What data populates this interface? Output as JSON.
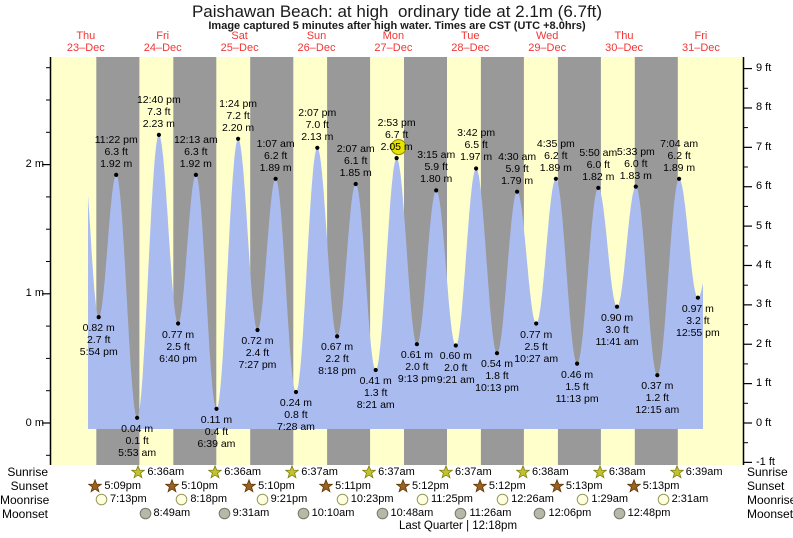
{
  "title": "Paishawan Beach: at high  ordinary tide at 2.1m (6.7ft)",
  "subtitle": "Image captured 5 minutes after high water. Times are CST (UTC +8.0hrs)",
  "colors": {
    "band_day": "#ffffcc",
    "band_night": "#999999",
    "tide_area": "#aabbf0",
    "day_label_red": "#f23535",
    "current_highlight": "#e8e400",
    "current_highlight_edge": "#8a8a00",
    "sunrise_star": "#c2c22e",
    "sunrise_star_edge": "#7d7d10",
    "sunset_star": "#9a6120",
    "sunset_star_edge": "#5c3508",
    "moonrise_circle": "#ffffdd",
    "moonrise_circle_edge": "#99995c",
    "moonset_circle": "#b8b8a8",
    "moonset_circle_edge": "#77776a",
    "axis": "#000000"
  },
  "chart_data": {
    "type": "area",
    "title": "Paishawan Beach: at high  ordinary tide at 2.1m (6.7ft)",
    "xlabel": "",
    "ylabel_left": "m",
    "ylabel_right": "ft",
    "ylim_left_m": [
      -0.3,
      2.84
    ],
    "grid": false,
    "days": [
      {
        "name": "Thu",
        "date": "23–Dec"
      },
      {
        "name": "Fri",
        "date": "24–Dec"
      },
      {
        "name": "Sat",
        "date": "25–Dec"
      },
      {
        "name": "Sun",
        "date": "26–Dec"
      },
      {
        "name": "Mon",
        "date": "27–Dec"
      },
      {
        "name": "Tue",
        "date": "28–Dec"
      },
      {
        "name": "Wed",
        "date": "29–Dec"
      },
      {
        "name": "Thu",
        "date": "30–Dec"
      },
      {
        "name": "Fri",
        "date": "31–Dec"
      }
    ],
    "left_ticks": [
      {
        "m": 2,
        "label": "2 m"
      },
      {
        "m": 1,
        "label": "1 m"
      },
      {
        "m": 0,
        "label": "0 m"
      }
    ],
    "right_ticks": [
      {
        "ft": 9,
        "label": "9 ft"
      },
      {
        "ft": 8,
        "label": "8 ft"
      },
      {
        "ft": 7,
        "label": "7 ft"
      },
      {
        "ft": 6,
        "label": "6 ft"
      },
      {
        "ft": 5,
        "label": "5 ft"
      },
      {
        "ft": 4,
        "label": "4 ft"
      },
      {
        "ft": 3,
        "label": "3 ft"
      },
      {
        "ft": 2,
        "label": "2 ft"
      },
      {
        "ft": 1,
        "label": "1 ft"
      },
      {
        "ft": 0,
        "label": "0 ft"
      },
      {
        "ft": -1,
        "label": "-1 ft"
      }
    ],
    "tides": [
      {
        "day": 0,
        "date": "23-Dec",
        "type": "low",
        "time": "5:54 pm",
        "ft": "2.7",
        "m": "0.82"
      },
      {
        "day": 0,
        "date": "23-Dec",
        "type": "high",
        "time": "11:22 pm",
        "ft": "6.3",
        "m": "1.92"
      },
      {
        "day": 1,
        "date": "24-Dec",
        "type": "low",
        "time": "5:53 am",
        "ft": "0.1",
        "m": "0.04"
      },
      {
        "day": 1,
        "date": "24-Dec",
        "type": "high",
        "time": "12:40 pm",
        "ft": "7.3",
        "m": "2.23"
      },
      {
        "day": 1,
        "date": "24-Dec",
        "type": "low",
        "time": "6:40 pm",
        "ft": "2.5",
        "m": "0.77"
      },
      {
        "day": 2,
        "date": "25-Dec",
        "type": "high",
        "time": "12:13 am",
        "ft": "6.3",
        "m": "1.92"
      },
      {
        "day": 2,
        "date": "25-Dec",
        "type": "low",
        "time": "6:39 am",
        "ft": "0.4",
        "m": "0.11"
      },
      {
        "day": 2,
        "date": "25-Dec",
        "type": "high",
        "time": "1:24 pm",
        "ft": "7.2",
        "m": "2.20"
      },
      {
        "day": 2,
        "date": "25-Dec",
        "type": "low",
        "time": "7:27 pm",
        "ft": "2.4",
        "m": "0.72"
      },
      {
        "day": 3,
        "date": "26-Dec",
        "type": "high",
        "time": "1:07 am",
        "ft": "6.2",
        "m": "1.89"
      },
      {
        "day": 3,
        "date": "26-Dec",
        "type": "low",
        "time": "7:28 am",
        "ft": "0.8",
        "m": "0.24"
      },
      {
        "day": 3,
        "date": "26-Dec",
        "type": "high",
        "time": "2:07 pm",
        "ft": "7.0",
        "m": "2.13"
      },
      {
        "day": 3,
        "date": "26-Dec",
        "type": "low",
        "time": "8:18 pm",
        "ft": "2.2",
        "m": "0.67"
      },
      {
        "day": 4,
        "date": "27-Dec",
        "type": "high",
        "time": "2:07 am",
        "ft": "6.1",
        "m": "1.85"
      },
      {
        "day": 4,
        "date": "27-Dec",
        "type": "low",
        "time": "8:21 am",
        "ft": "1.3",
        "m": "0.41"
      },
      {
        "day": 4,
        "date": "27-Dec",
        "type": "high",
        "time": "2:53 pm",
        "ft": "6.7",
        "m": "2.05",
        "current": true
      },
      {
        "day": 4,
        "date": "27-Dec",
        "type": "low",
        "time": "9:13 pm",
        "ft": "2.0",
        "m": "0.61"
      },
      {
        "day": 5,
        "date": "28-Dec",
        "type": "high",
        "time": "3:15 am",
        "ft": "5.9",
        "m": "1.80"
      },
      {
        "day": 5,
        "date": "28-Dec",
        "type": "low",
        "time": "9:21 am",
        "ft": "2.0",
        "m": "0.60"
      },
      {
        "day": 5,
        "date": "28-Dec",
        "type": "high",
        "time": "3:42 pm",
        "ft": "6.5",
        "m": "1.97"
      },
      {
        "day": 5,
        "date": "28-Dec",
        "type": "low",
        "time": "10:13 pm",
        "ft": "1.8",
        "m": "0.54"
      },
      {
        "day": 6,
        "date": "29-Dec",
        "type": "high",
        "time": "4:30 am",
        "ft": "5.9",
        "m": "1.79"
      },
      {
        "day": 6,
        "date": "29-Dec",
        "type": "low",
        "time": "10:27 am",
        "ft": "2.5",
        "m": "0.77"
      },
      {
        "day": 6,
        "date": "29-Dec",
        "type": "high",
        "time": "4:35 pm",
        "ft": "6.2",
        "m": "1.89"
      },
      {
        "day": 6,
        "date": "29-Dec",
        "type": "low",
        "time": "11:13 pm",
        "ft": "1.5",
        "m": "0.46"
      },
      {
        "day": 7,
        "date": "30-Dec",
        "type": "high",
        "time": "5:50 am",
        "ft": "6.0",
        "m": "1.82"
      },
      {
        "day": 7,
        "date": "30-Dec",
        "type": "low",
        "time": "11:41 am",
        "ft": "3.0",
        "m": "0.90"
      },
      {
        "day": 7,
        "date": "30-Dec",
        "type": "high",
        "time": "5:33 pm",
        "ft": "6.0",
        "m": "1.83"
      },
      {
        "day": 8,
        "date": "31-Dec",
        "type": "low",
        "time": "12:15 am",
        "ft": "1.2",
        "m": "0.37"
      },
      {
        "day": 8,
        "date": "31-Dec",
        "type": "high",
        "time": "7:04 am",
        "ft": "6.2",
        "m": "1.89"
      },
      {
        "day": 8,
        "date": "31-Dec",
        "type": "low",
        "time": "12:55 pm",
        "ft": "3.2",
        "m": "0.97"
      }
    ]
  },
  "sun_moon": {
    "left_labels": [
      "Sunrise",
      "Sunset",
      "Moonrise",
      "Moonset"
    ],
    "right_labels": [
      "Sunrise",
      "Sunset",
      "Moonrise",
      "Moonset"
    ],
    "sunrise": [
      {
        "day": 1,
        "time": "6:36am"
      },
      {
        "day": 2,
        "time": "6:36am"
      },
      {
        "day": 3,
        "time": "6:37am"
      },
      {
        "day": 4,
        "time": "6:37am"
      },
      {
        "day": 5,
        "time": "6:37am"
      },
      {
        "day": 6,
        "time": "6:38am"
      },
      {
        "day": 7,
        "time": "6:38am"
      },
      {
        "day": 8,
        "time": "6:39am"
      }
    ],
    "sunset": [
      {
        "day": 0,
        "time": "5:09pm"
      },
      {
        "day": 1,
        "time": "5:10pm"
      },
      {
        "day": 2,
        "time": "5:10pm"
      },
      {
        "day": 3,
        "time": "5:11pm"
      },
      {
        "day": 4,
        "time": "5:12pm"
      },
      {
        "day": 5,
        "time": "5:12pm"
      },
      {
        "day": 6,
        "time": "5:13pm"
      },
      {
        "day": 7,
        "time": "5:13pm"
      }
    ],
    "moonrise": [
      {
        "day": 0,
        "time": "7:13pm"
      },
      {
        "day": 1,
        "time": "8:18pm"
      },
      {
        "day": 2,
        "time": "9:21pm"
      },
      {
        "day": 3,
        "time": "10:23pm"
      },
      {
        "day": 4,
        "time": "11:25pm"
      },
      {
        "day": 6,
        "time": "12:26am"
      },
      {
        "day": 7,
        "time": "1:29am"
      },
      {
        "day": 8,
        "time": "2:31am"
      }
    ],
    "moonset": [
      {
        "day": 1,
        "time": "8:49am"
      },
      {
        "day": 2,
        "time": "9:31am"
      },
      {
        "day": 3,
        "time": "10:10am"
      },
      {
        "day": 4,
        "time": "10:48am"
      },
      {
        "day": 5,
        "time": "11:26am"
      },
      {
        "day": 6,
        "time": "12:06pm"
      },
      {
        "day": 7,
        "time": "12:48pm"
      }
    ],
    "moon_phase": "Last Quarter | 12:18pm"
  }
}
